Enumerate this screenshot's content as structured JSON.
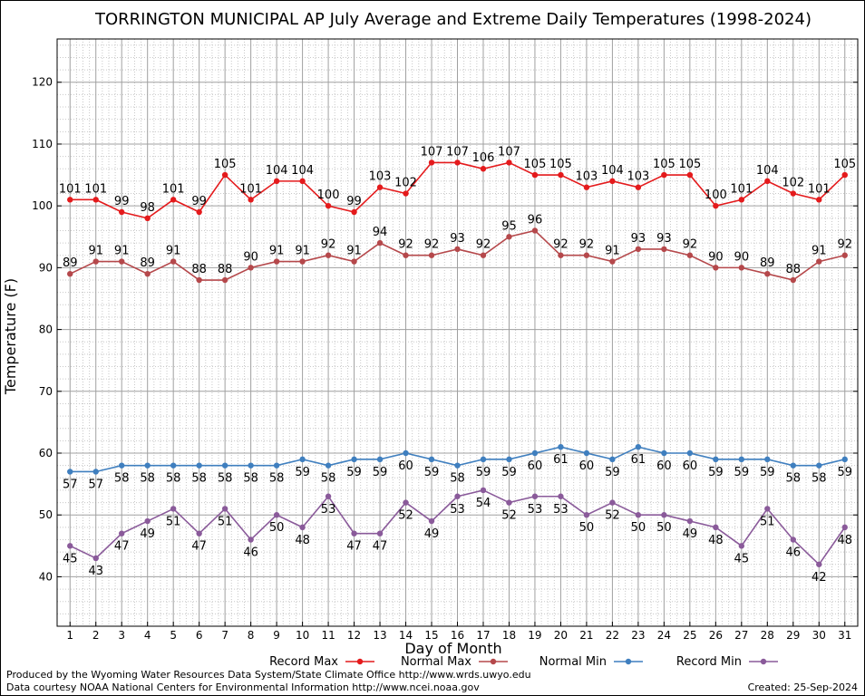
{
  "chart_data": {
    "type": "line",
    "title": "TORRINGTON MUNICIPAL AP July Average and Extreme Daily Temperatures (1998-2024)",
    "xlabel": "Day of Month",
    "ylabel": "Temperature (F)",
    "x": [
      1,
      2,
      3,
      4,
      5,
      6,
      7,
      8,
      9,
      10,
      11,
      12,
      13,
      14,
      15,
      16,
      17,
      18,
      19,
      20,
      21,
      22,
      23,
      24,
      25,
      26,
      27,
      28,
      29,
      30,
      31
    ],
    "xlim": [
      0.5,
      31.5
    ],
    "ylim": [
      32,
      127
    ],
    "yticks": [
      40,
      50,
      60,
      70,
      80,
      90,
      100,
      110,
      120
    ],
    "grid": true,
    "legend_position": "bottom",
    "series": [
      {
        "name": "Record Max",
        "color": "#e41a1c",
        "values": [
          101,
          101,
          99,
          98,
          101,
          99,
          105,
          101,
          104,
          104,
          100,
          99,
          103,
          102,
          107,
          107,
          106,
          107,
          105,
          105,
          103,
          104,
          103,
          105,
          105,
          100,
          101,
          104,
          102,
          101,
          105
        ]
      },
      {
        "name": "Normal Max",
        "color": "#b5484b",
        "values": [
          89,
          91,
          91,
          89,
          91,
          88,
          88,
          90,
          91,
          91,
          92,
          91,
          94,
          92,
          92,
          93,
          92,
          95,
          96,
          92,
          92,
          91,
          93,
          93,
          92,
          90,
          90,
          89,
          88,
          91,
          92
        ]
      },
      {
        "name": "Normal Min",
        "color": "#3f7fbf",
        "values": [
          57,
          57,
          58,
          58,
          58,
          58,
          58,
          58,
          58,
          59,
          58,
          59,
          59,
          60,
          59,
          58,
          59,
          59,
          60,
          61,
          60,
          59,
          61,
          60,
          60,
          59,
          59,
          59,
          58,
          58,
          59
        ]
      },
      {
        "name": "Record Min",
        "color": "#8a5a9a",
        "values": [
          45,
          43,
          47,
          49,
          51,
          47,
          51,
          46,
          50,
          48,
          53,
          47,
          47,
          52,
          49,
          53,
          54,
          52,
          53,
          53,
          50,
          52,
          50,
          50,
          49,
          48,
          45,
          51,
          46,
          42,
          48
        ]
      }
    ]
  },
  "footer": {
    "left_line1": "Produced by the Wyoming Water Resources Data System/State Climate Office http://www.wrds.uwyo.edu",
    "left_line2": "Data courtesy NOAA National Centers for Environmental Information http://www.ncei.noaa.gov",
    "created": "Created:  25-Sep-2024"
  }
}
